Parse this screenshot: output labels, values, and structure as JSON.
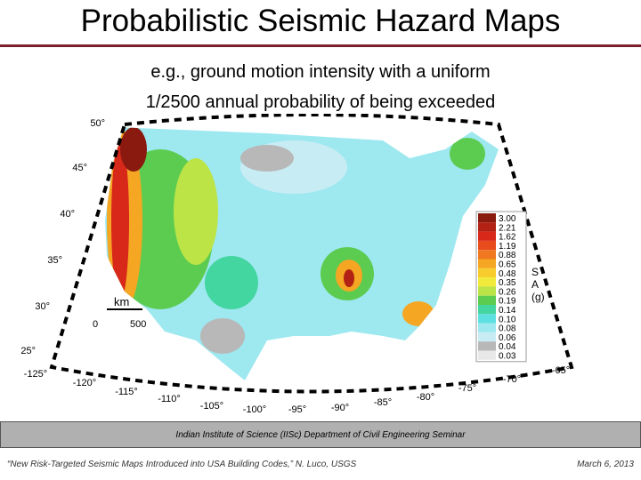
{
  "header": {
    "title": "Probabilistic Seismic Hazard Maps"
  },
  "subtitle": [
    "e.g., ground motion intensity with a uniform",
    "1/2500 annual probability of being exceeded"
  ],
  "map": {
    "latitude_labels": [
      "50°",
      "45°",
      "40°",
      "35°",
      "30°",
      "25°"
    ],
    "longitude_labels": [
      "-125°",
      "-120°",
      "-115°",
      "-110°",
      "-105°",
      "-100°",
      "-95°",
      "-90°",
      "-85°",
      "-80°",
      "-75°",
      "-70°",
      "-65°"
    ],
    "scale": {
      "unit": "km",
      "start": "0",
      "end": "500"
    },
    "legend": {
      "axis_label": [
        "S",
        "A",
        "(g)"
      ],
      "items": [
        {
          "label": "3.00",
          "color": "#8a1a10"
        },
        {
          "label": "2.21",
          "color": "#b22214"
        },
        {
          "label": "1.62",
          "color": "#d8281a"
        },
        {
          "label": "1.19",
          "color": "#e84c1c"
        },
        {
          "label": "0.88",
          "color": "#f07820"
        },
        {
          "label": "0.65",
          "color": "#f5a623"
        },
        {
          "label": "0.48",
          "color": "#f8cc2c"
        },
        {
          "label": "0.35",
          "color": "#f2ea3a"
        },
        {
          "label": "0.26",
          "color": "#bce446"
        },
        {
          "label": "0.19",
          "color": "#5ccc50"
        },
        {
          "label": "0.14",
          "color": "#44d6a0"
        },
        {
          "label": "0.10",
          "color": "#5ee0e0"
        },
        {
          "label": "0.08",
          "color": "#9ee8f0"
        },
        {
          "label": "0.06",
          "color": "#c8ecf4"
        },
        {
          "label": "0.04",
          "color": "#b8b8b8"
        },
        {
          "label": "0.03",
          "color": "#e8e8e8"
        }
      ]
    }
  },
  "footer": {
    "banner": "Indian Institute of Science (IISc) Department of Civil Engineering Seminar",
    "citation": "“New Risk-Targeted Seismic Maps Introduced into USA Building Codes,” N. Luco, USGS",
    "date": "March 6, 2013"
  }
}
